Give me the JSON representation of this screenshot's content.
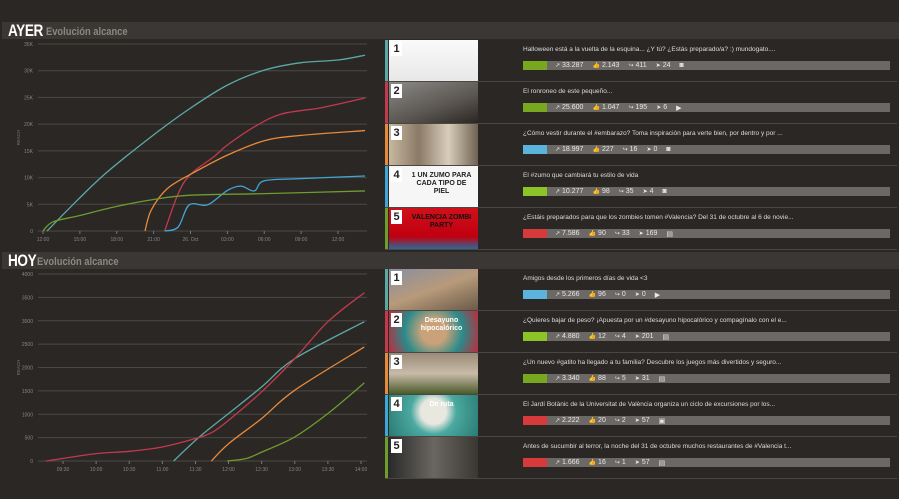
{
  "sections": [
    {
      "title": "AYER",
      "subtitle": "Evolución alcance"
    },
    {
      "title": "HOY",
      "subtitle": "Evolución alcance"
    }
  ],
  "colors": {
    "teal": "#5ba9a7",
    "red": "#c23a4c",
    "orange": "#e88a3b",
    "blue": "#3fa7d8",
    "green": "#6d9c2f",
    "lightgreen": "#8cc427",
    "swatch_red": "#d63a3a",
    "swatch_blue": "#5ab4dc",
    "swatch_green": "#77a820"
  },
  "chart_data": [
    {
      "type": "line",
      "title": "Evolución alcance",
      "ylabel": "REACH",
      "ylim": [
        0,
        35000
      ],
      "yticks": [
        "0",
        "5K",
        "10K",
        "15K",
        "20K",
        "25K",
        "30K",
        "35K"
      ],
      "xticks": [
        "12:00",
        "15:00",
        "18:00",
        "21:00",
        "26. Oct",
        "03:00",
        "06:00",
        "09:00",
        "12:00"
      ],
      "x_unit": "hours since 12:00",
      "series": [
        {
          "name": "post-1",
          "color": "#5ba9a7",
          "x": [
            0.33,
            2.9,
            5.2,
            9,
            12,
            15,
            18,
            21,
            24,
            26.2
          ],
          "y": [
            0,
            6000,
            11000,
            18000,
            23000,
            27300,
            30100,
            31500,
            32000,
            32900
          ]
        },
        {
          "name": "post-2",
          "color": "#c23a4c",
          "x": [
            9.9,
            11,
            12,
            13.9,
            15,
            17.2,
            19.4,
            22.7,
            26.2
          ],
          "y": [
            0,
            7000,
            10600,
            13900,
            16100,
            19500,
            21900,
            23100,
            24900
          ]
        },
        {
          "name": "post-3",
          "color": "#e88a3b",
          "x": [
            8.3,
            8.8,
            10.1,
            12,
            15,
            18,
            21,
            26.2
          ],
          "y": [
            0,
            3900,
            7900,
            10600,
            14200,
            16900,
            17900,
            18800
          ]
        },
        {
          "name": "post-4",
          "color": "#3fa7d8",
          "x": [
            9.9,
            11,
            11.9,
            13.4,
            15,
            16.1,
            17.2,
            18,
            21,
            26.2
          ],
          "y": [
            0,
            750,
            4900,
            4900,
            7600,
            8400,
            7500,
            9400,
            9800,
            10300
          ]
        },
        {
          "name": "post-5",
          "color": "#6d9c2f",
          "x": [
            0,
            0.8,
            3,
            6,
            9,
            12,
            18,
            26.2
          ],
          "y": [
            0,
            1700,
            2900,
            4600,
            5900,
            6700,
            7000,
            7500
          ]
        }
      ]
    },
    {
      "type": "line",
      "title": "Evolución alcance",
      "ylabel": "REACH",
      "ylim": [
        0,
        4000
      ],
      "yticks": [
        "0",
        "500",
        "1000",
        "1500",
        "2000",
        "2500",
        "3000",
        "3500",
        "4000"
      ],
      "xticks": [
        "09:30",
        "10:00",
        "10:30",
        "11:00",
        "11:30",
        "12:00",
        "12:30",
        "13:00",
        "13:30",
        "14:00"
      ],
      "x_unit": "hour of day",
      "series": [
        {
          "name": "post-1",
          "color": "#5ba9a7",
          "x": [
            11.17,
            11.56,
            12,
            12.5,
            13,
            14.05
          ],
          "y": [
            0,
            515,
            1015,
            1585,
            2190,
            2980
          ]
        },
        {
          "name": "post-2",
          "color": "#c23a4c",
          "x": [
            9.24,
            10,
            10.5,
            11,
            11.5,
            11.76,
            12,
            12.5,
            13,
            13.5,
            14.05
          ],
          "y": [
            0,
            157,
            207,
            300,
            480,
            620,
            870,
            1480,
            2190,
            2980,
            3600
          ]
        },
        {
          "name": "post-3",
          "color": "#e88a3b",
          "x": [
            11.74,
            12,
            12.5,
            13,
            14.05
          ],
          "y": [
            0,
            370,
            910,
            1515,
            2440
          ]
        },
        {
          "name": "post-5",
          "color": "#6d9c2f",
          "x": [
            11.98,
            12.26,
            12.5,
            13,
            13.5,
            14.05
          ],
          "y": [
            0,
            50,
            190,
            515,
            1015,
            1670
          ]
        }
      ]
    }
  ],
  "lists": [
    [
      {
        "rank": "1",
        "stripe": "#5ba9a7",
        "thumb": "linear-gradient(#fafafa,#e8e8e8)",
        "thumb_text": "",
        "caption": "Halloween está a la vuelta de la esquina... ¿Y tú? ¿Estás preparado/a? :) mundogato....",
        "swatch": "#77a820",
        "reach": "33.287",
        "likes": "2.143",
        "shares": "411",
        "clicks": "24",
        "type_icon": "camera-icon",
        "type_glyph": "◙"
      },
      {
        "rank": "2",
        "stripe": "#c23a4c",
        "thumb": "linear-gradient(160deg,#8a8a88,#5a5550 60%,#2a2622)",
        "thumb_text": "",
        "caption": "El ronroneo de este pequeño...",
        "swatch": "#77a820",
        "reach": "25.600",
        "likes": "1.047",
        "shares": "195",
        "clicks": "6",
        "type_icon": "video-icon",
        "type_glyph": "▶"
      },
      {
        "rank": "3",
        "stripe": "#e88a3b",
        "thumb": "linear-gradient(90deg,#c9b8a0,#8a7a66,#d8cdbb,#6f6252)",
        "thumb_text": "",
        "caption": "¿Cómo vestir durante el #embarazo? Toma inspiración para verte bien, por dentro y por ...",
        "swatch": "#5ab4dc",
        "reach": "18.997",
        "likes": "227",
        "shares": "16",
        "clicks": "0",
        "type_icon": "camera-icon",
        "type_glyph": "◙"
      },
      {
        "rank": "4",
        "stripe": "#3fa7d8",
        "thumb": "#f6f6f6",
        "thumb_text": "1 UN ZUMO PARA CADA TIPO DE PIEL",
        "caption": "El #zumo que cambiará tu estilo de vida",
        "swatch": "#8cc427",
        "reach": "10.277",
        "likes": "98",
        "shares": "35",
        "clicks": "4",
        "type_icon": "camera-icon",
        "type_glyph": "◙"
      },
      {
        "rank": "5",
        "stripe": "#6d9c2f",
        "thumb": "linear-gradient(#d0101a,#c00010 70%,#2a6a9a)",
        "thumb_text": "VALENCIA ZOMBI PARTY",
        "caption": "¿Estáis preparados para que los zombies tomen #Valencia? Del 31 de octubre al 6 de novie...",
        "swatch": "#d63a3a",
        "reach": "7.586",
        "likes": "90",
        "shares": "33",
        "clicks": "169",
        "type_icon": "document-icon",
        "type_glyph": "▤"
      }
    ],
    [
      {
        "rank": "1",
        "stripe": "#5ba9a7",
        "thumb": "linear-gradient(160deg,#8a8fa0,#b79a7a 50%,#6b5a48)",
        "thumb_text": "",
        "caption": "Amigos desde los primeros días de vida <3",
        "swatch": "#5ab4dc",
        "reach": "5.266",
        "likes": "96",
        "shares": "0",
        "clicks": "0",
        "type_icon": "video-icon",
        "type_glyph": "▶"
      },
      {
        "rank": "2",
        "stripe": "#c23a4c",
        "thumb": "radial-gradient(circle at 50% 50%,#c9a27a 25%,#2a8a8a 60%,#c02a3a)",
        "thumb_text": "Desayuno hipocalórico",
        "caption": "¿Quieres bajar de peso? ¡Apuesta por un #desayuno hipocalórico y compagínalo con el e...",
        "swatch": "#8cc427",
        "reach": "4.880",
        "likes": "12",
        "shares": "4",
        "clicks": "201",
        "type_icon": "document-icon",
        "type_glyph": "▤"
      },
      {
        "rank": "3",
        "stripe": "#e88a3b",
        "thumb": "linear-gradient(#9a8a78,#c8bba8 50%,#4a5a2a)",
        "thumb_text": "",
        "caption": "¿Un nuevo #gatito ha llegado a tu familia? Descubre los juegos más divertidos y seguro...",
        "swatch": "#77a820",
        "reach": "3.340",
        "likes": "88",
        "shares": "5",
        "clicks": "31",
        "type_icon": "document-icon",
        "type_glyph": "▤"
      },
      {
        "rank": "4",
        "stripe": "#3fa7d8",
        "thumb": "radial-gradient(circle at 50% 40%,#e8e8e0 25%,#4aa9a0 45%,#2a7a72)",
        "thumb_text": "De ruta",
        "caption": "El Jardí Botànic de la Universitat de València organiza un ciclo de excursiones por los...",
        "swatch": "#d63a3a",
        "reach": "2.222",
        "likes": "20",
        "shares": "2",
        "clicks": "57",
        "type_icon": "image-icon",
        "type_glyph": "▣"
      },
      {
        "rank": "5",
        "stripe": "#6d9c2f",
        "thumb": "linear-gradient(90deg,#2a2a2a,#6a6660 50%,#3a3632)",
        "thumb_text": "",
        "caption": "Antes de sucumbir al terror, la noche del 31 de octubre muchos restaurantes de #Valencia t...",
        "swatch": "#d63a3a",
        "reach": "1.666",
        "likes": "16",
        "shares": "1",
        "clicks": "57",
        "type_icon": "document-icon",
        "type_glyph": "▤"
      }
    ]
  ],
  "stat_icons": {
    "reach": "↗",
    "likes": "👍",
    "shares": "↪",
    "clicks": "➤"
  }
}
